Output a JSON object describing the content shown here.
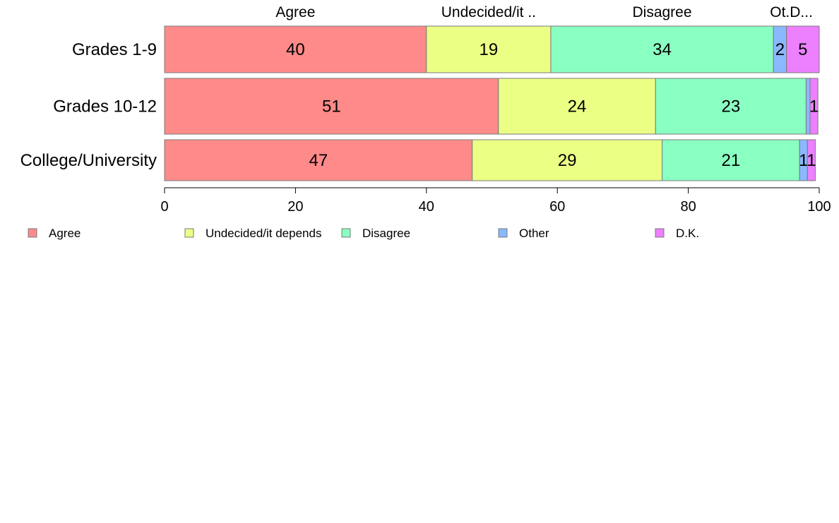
{
  "chart_data": {
    "type": "bar",
    "orientation": "horizontal",
    "stacked": true,
    "categories": [
      "Grades 1-9",
      "Grades 10-12",
      "College/University"
    ],
    "series": [
      {
        "name": "Agree",
        "values": [
          40,
          51,
          47
        ],
        "color": "#ff8a8a"
      },
      {
        "name": "Undecided/it depends",
        "values": [
          19,
          24,
          29
        ],
        "color": "#ecff85"
      },
      {
        "name": "Disagree",
        "values": [
          34,
          23,
          21
        ],
        "color": "#8affc2"
      },
      {
        "name": "Other",
        "values": [
          2,
          0.6,
          1.2
        ],
        "color": "#8ab8ff"
      },
      {
        "name": "D.K.",
        "values": [
          5,
          1.2,
          1.2
        ],
        "color": "#ec80ff"
      }
    ],
    "data_labels": [
      [
        "40",
        "19",
        "34",
        "2",
        "5"
      ],
      [
        "51",
        "24",
        "23",
        "",
        "1"
      ],
      [
        "47",
        "29",
        "21",
        "1",
        "1"
      ]
    ],
    "top_labels": [
      "Agree",
      "Undecided/it ..",
      "Disagree",
      "Ot.D..."
    ],
    "x_ticks": [
      0,
      20,
      40,
      60,
      80,
      100
    ],
    "xlim": [
      0,
      100
    ],
    "grid": false,
    "legend_position": "bottom"
  }
}
